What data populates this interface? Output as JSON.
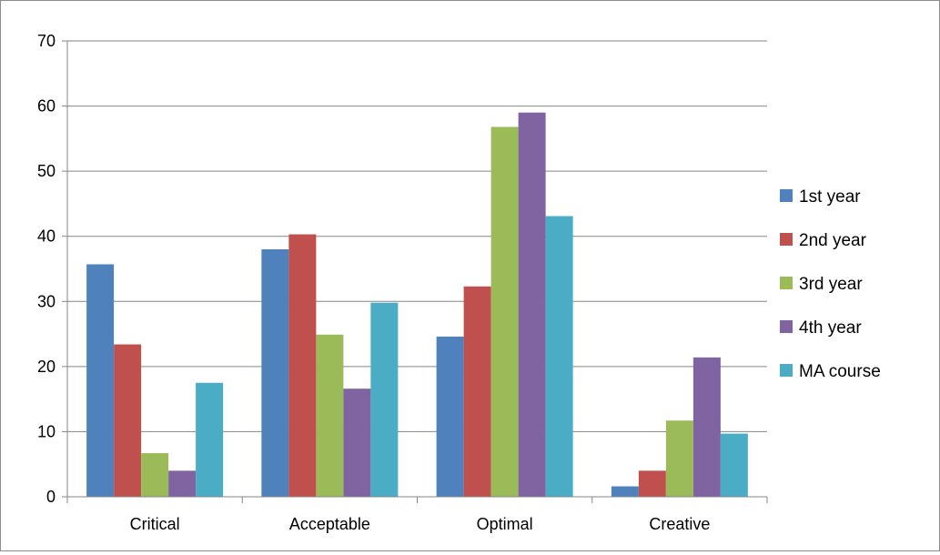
{
  "chart_data": {
    "type": "bar",
    "categories": [
      "Critical",
      "Acceptable",
      "Optimal",
      "Creative"
    ],
    "series": [
      {
        "name": "1st year",
        "color": "#4f81bd",
        "values": [
          35.7,
          38.0,
          24.6,
          1.6
        ]
      },
      {
        "name": "2nd year",
        "color": "#c0504d",
        "values": [
          23.4,
          40.3,
          32.3,
          4.0
        ]
      },
      {
        "name": "3rd year",
        "color": "#9bbb59",
        "values": [
          6.7,
          24.9,
          56.8,
          11.7
        ]
      },
      {
        "name": "4th year",
        "color": "#8064a2",
        "values": [
          4.0,
          16.6,
          59.0,
          21.4
        ]
      },
      {
        "name": "MA course",
        "color": "#4bacc6",
        "values": [
          17.5,
          29.8,
          43.1,
          9.7
        ]
      }
    ],
    "ylim": [
      0,
      70
    ],
    "y_ticks": [
      "0",
      "10",
      "20",
      "30",
      "40",
      "50",
      "60",
      "70"
    ],
    "grid": true,
    "legend_position": "right",
    "title": "",
    "xlabel": "",
    "ylabel": ""
  }
}
